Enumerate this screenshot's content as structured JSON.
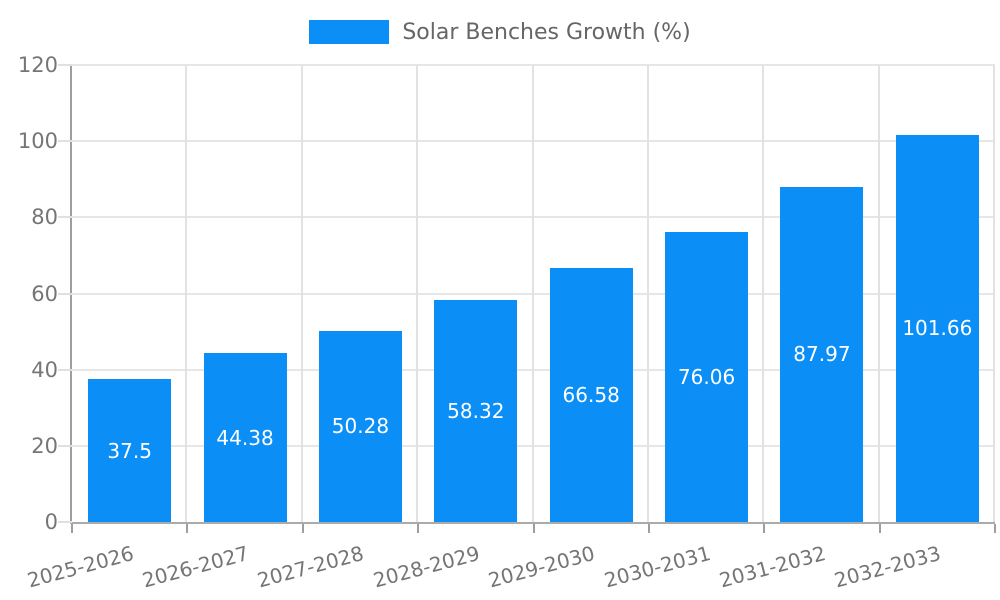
{
  "legend": {
    "label": "Solar Benches Growth (%)"
  },
  "colors": {
    "bar": "#0b8ef6",
    "grid": "#e6e6e6",
    "axis": "#9e9e9e",
    "tick_text": "#757575",
    "legend_text": "#666666",
    "bar_label_text": "#ffffff"
  },
  "chart_data": {
    "type": "bar",
    "title": "",
    "series_name": "Solar Benches Growth (%)",
    "categories": [
      "2025-2026",
      "2026-2027",
      "2027-2028",
      "2028-2029",
      "2029-2030",
      "2030-2031",
      "2031-2032",
      "2032-2033"
    ],
    "values": [
      37.5,
      44.38,
      50.28,
      58.32,
      66.58,
      76.06,
      87.97,
      101.66
    ],
    "value_labels": [
      "37.5",
      "44.38",
      "50.28",
      "58.32",
      "66.58",
      "76.06",
      "87.97",
      "101.66"
    ],
    "y_ticks": [
      0,
      20,
      40,
      60,
      80,
      100,
      120
    ],
    "ylim": [
      0,
      120
    ],
    "grid": true,
    "value_labels_position": "center-inside",
    "x_label_rotation_deg": -15,
    "legend_position": "top-center"
  }
}
